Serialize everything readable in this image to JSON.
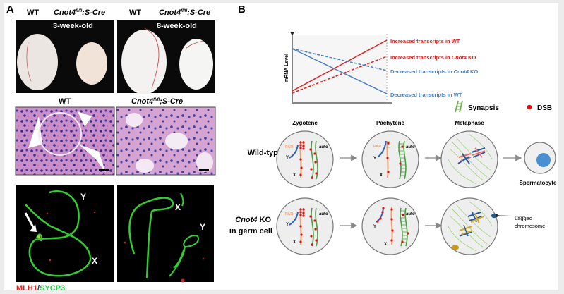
{
  "panel_a": {
    "label": "A",
    "gross": {
      "left_wt": "WT",
      "left_ko": "Cnot4",
      "left_ko_sup": "fl/fl",
      "left_ko_rest": ";S-Cre",
      "left_age": "3-week-old",
      "right_wt": "WT",
      "right_ko": "Cnot4",
      "right_ko_sup": "fl/fl",
      "right_ko_rest": ";S-Cre",
      "right_age": "8-week-old"
    },
    "histology": {
      "wt": "WT",
      "ko": "Cnot4",
      "ko_sup": "fl/fl",
      "ko_rest": ";S-Cre"
    },
    "spread": {
      "left_y": "Y",
      "left_x": "X",
      "right_x": "X",
      "right_y": "Y",
      "stain_red": "MLH1",
      "stain_sep": "/",
      "stain_green": "SYCP3"
    }
  },
  "panel_b": {
    "label": "B",
    "plot": {
      "ylabel": "mRNA Level",
      "lines": [
        {
          "label_pre": "Increased transcripts in ",
          "label_em": "",
          "label_post": "WT",
          "color": "#e02020",
          "style": "solid"
        },
        {
          "label_pre": "Increased transcripts in ",
          "label_em": "Cnot4",
          "label_post": " KO",
          "color": "#e02020",
          "style": "dashed"
        },
        {
          "label_pre": "Decreased transcripts in ",
          "label_em": "Cnot4",
          "label_post": " KO",
          "color": "#4a7fc0",
          "style": "dashed"
        },
        {
          "label_pre": "Decreased transcripts in ",
          "label_em": "",
          "label_post": "WT",
          "color": "#4a7fc0",
          "style": "solid"
        }
      ]
    },
    "legend": {
      "synapsis": "Synapsis",
      "dsb": "DSB"
    },
    "stages": [
      "Zygotene",
      "Pachytene",
      "Metaphase"
    ],
    "rows": {
      "wt": "Wild-type",
      "ko_em": "Cnot4",
      "ko_rest": " KO",
      "ko_line2": "in germ cell"
    },
    "cell_labels": {
      "par": "PAR",
      "y": "Y",
      "x": "X",
      "auto": "auto"
    },
    "spermatocyte": "Spermatocyte",
    "lagged_line1": "Lagged",
    "lagged_line2": "chromosome"
  }
}
